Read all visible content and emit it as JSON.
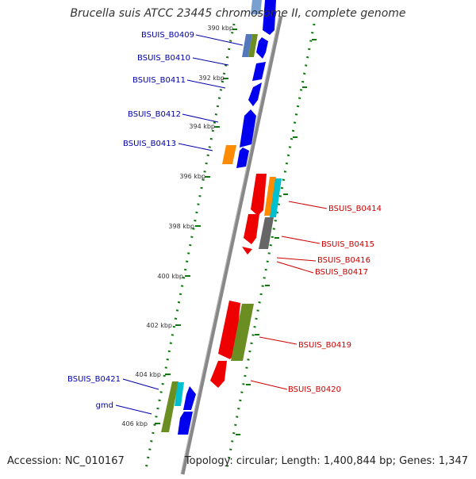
{
  "title": "Brucella suis ATCC 23445 chromosome II, complete genome",
  "accession_text": "Accession: NC_010167",
  "summary_text": "Topology: circular; Length: 1,400,844 bp; Genes: 1,347",
  "colors": {
    "forward_label": "#0000aa",
    "reverse_label": "#cc0000",
    "cds_forward": "#0000ee",
    "cds_reverse": "#ee0000",
    "backbone": "#888888",
    "dots": "#117711"
  },
  "ticks": [
    {
      "label": "390 kbp"
    },
    {
      "label": "392 kbp"
    },
    {
      "label": "394 kbp"
    },
    {
      "label": "396 kbp"
    },
    {
      "label": "398 kbp"
    },
    {
      "label": "400 kbp"
    },
    {
      "label": "402 kbp"
    },
    {
      "label": "404 kbp"
    },
    {
      "label": "406 kbp"
    }
  ],
  "forward_labels": [
    {
      "name": "BSUIS_B0409"
    },
    {
      "name": "BSUIS_B0410"
    },
    {
      "name": "BSUIS_B0411"
    },
    {
      "name": "BSUIS_B0412"
    },
    {
      "name": "BSUIS_B0413"
    },
    {
      "name": "BSUIS_B0421"
    },
    {
      "name": "gmd"
    }
  ],
  "reverse_labels": [
    {
      "name": "BSUIS_B0414"
    },
    {
      "name": "BSUIS_B0415"
    },
    {
      "name": "BSUIS_B0416"
    },
    {
      "name": "BSUIS_B0417"
    },
    {
      "name": "BSUIS_B0419"
    },
    {
      "name": "BSUIS_B0420"
    }
  ]
}
